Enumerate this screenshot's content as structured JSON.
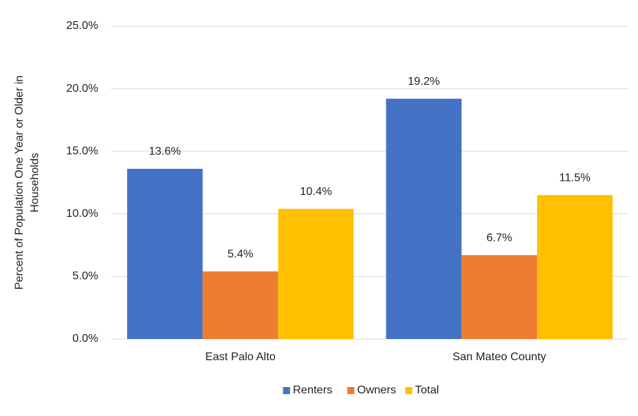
{
  "chart_data": {
    "type": "bar",
    "y_label": [
      "Percent of Population One Year or Older in",
      "Households"
    ],
    "categories": [
      "East Palo Alto",
      "San Mateo County"
    ],
    "series": [
      {
        "name": "Renters",
        "color": "#4472c4",
        "values": [
          13.6,
          19.2
        ],
        "value_labels": [
          "13.6%",
          "19.2%"
        ]
      },
      {
        "name": "Owners",
        "color": "#ed7d31",
        "values": [
          5.4,
          6.7
        ],
        "value_labels": [
          "5.4%",
          "6.7%"
        ]
      },
      {
        "name": "Total",
        "color": "#ffc000",
        "values": [
          10.4,
          11.5
        ],
        "value_labels": [
          "10.4%",
          "11.5%"
        ]
      }
    ],
    "ylim": [
      0,
      25
    ],
    "yticks": [
      {
        "value": 0,
        "label": "0.0%"
      },
      {
        "value": 5,
        "label": "5.0%"
      },
      {
        "value": 10,
        "label": "10.0%"
      },
      {
        "value": 15,
        "label": "15.0%"
      },
      {
        "value": 20,
        "label": "20.0%"
      },
      {
        "value": 25,
        "label": "25.0%"
      }
    ],
    "grid": true,
    "legend": "bottom"
  }
}
